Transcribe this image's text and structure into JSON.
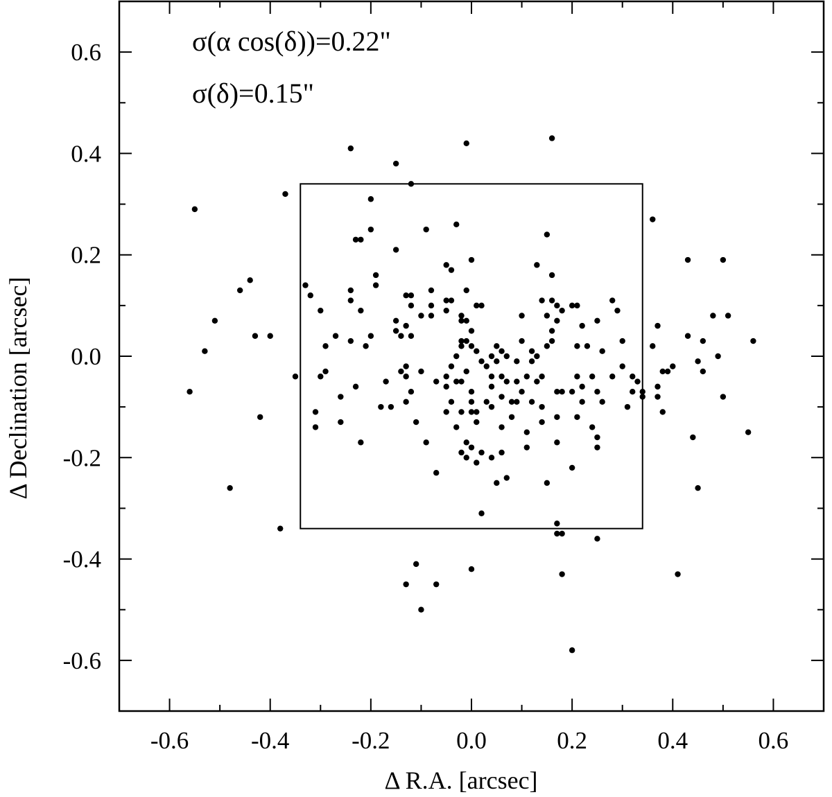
{
  "chart_data": {
    "type": "scatter",
    "xlabel": "Δ R.A. [arcsec]",
    "ylabel": "Δ Declination [arcsec]",
    "xlim": [
      -0.7,
      0.7
    ],
    "ylim": [
      -0.7,
      0.7
    ],
    "xticks": [
      "-0.6",
      "-0.4",
      "-0.2",
      "0.0",
      "0.2",
      "0.4",
      "0.6"
    ],
    "yticks": [
      "-0.6",
      "-0.4",
      "-0.2",
      "0.0",
      "0.2",
      "0.4",
      "0.6"
    ],
    "xtick_values": [
      -0.6,
      -0.4,
      -0.2,
      0.0,
      0.2,
      0.4,
      0.6
    ],
    "ytick_values": [
      -0.6,
      -0.4,
      -0.2,
      0.0,
      0.2,
      0.4,
      0.6
    ],
    "grid": false,
    "annotations": [
      "σ(α cos(δ))=0.22\"",
      "σ(δ)=0.15\""
    ],
    "box": {
      "x": [
        -0.34,
        0.34
      ],
      "y": [
        -0.34,
        0.34
      ]
    },
    "marker_color": "#000000",
    "points": [
      [
        0.16,
        0.43
      ],
      [
        -0.24,
        0.41
      ],
      [
        -0.01,
        0.42
      ],
      [
        -0.15,
        0.38
      ],
      [
        -0.12,
        0.34
      ],
      [
        -0.37,
        0.32
      ],
      [
        -0.2,
        0.31
      ],
      [
        -0.55,
        0.29
      ],
      [
        0.36,
        0.27
      ],
      [
        -0.03,
        0.26
      ],
      [
        -0.09,
        0.25
      ],
      [
        -0.2,
        0.25
      ],
      [
        0.15,
        0.24
      ],
      [
        -0.22,
        0.23
      ],
      [
        -0.23,
        0.23
      ],
      [
        -0.15,
        0.21
      ],
      [
        -0.04,
        0.17
      ],
      [
        -0.05,
        0.18
      ],
      [
        0.0,
        0.19
      ],
      [
        0.13,
        0.18
      ],
      [
        0.16,
        0.16
      ],
      [
        0.43,
        0.19
      ],
      [
        0.5,
        0.19
      ],
      [
        -0.44,
        0.15
      ],
      [
        -0.46,
        0.13
      ],
      [
        -0.33,
        0.14
      ],
      [
        -0.32,
        0.12
      ],
      [
        -0.19,
        0.16
      ],
      [
        -0.19,
        0.14
      ],
      [
        -0.24,
        0.13
      ],
      [
        -0.24,
        0.11
      ],
      [
        -0.22,
        0.09
      ],
      [
        -0.3,
        0.09
      ],
      [
        -0.13,
        0.12
      ],
      [
        -0.12,
        0.12
      ],
      [
        -0.12,
        0.1
      ],
      [
        -0.08,
        0.13
      ],
      [
        -0.08,
        0.1
      ],
      [
        -0.05,
        0.11
      ],
      [
        -0.05,
        0.09
      ],
      [
        -0.04,
        0.11
      ],
      [
        -0.02,
        0.08
      ],
      [
        -0.01,
        0.13
      ],
      [
        0.01,
        0.1
      ],
      [
        0.02,
        0.1
      ],
      [
        -0.08,
        0.08
      ],
      [
        -0.1,
        0.08
      ],
      [
        0.14,
        0.11
      ],
      [
        0.16,
        0.11
      ],
      [
        0.17,
        0.1
      ],
      [
        0.18,
        0.09
      ],
      [
        0.2,
        0.1
      ],
      [
        0.21,
        0.1
      ],
      [
        0.28,
        0.11
      ],
      [
        0.29,
        0.09
      ],
      [
        0.1,
        0.08
      ],
      [
        0.15,
        0.08
      ],
      [
        0.17,
        0.07
      ],
      [
        0.25,
        0.07
      ],
      [
        0.22,
        0.06
      ],
      [
        -0.51,
        0.07
      ],
      [
        -0.15,
        0.07
      ],
      [
        -0.15,
        0.05
      ],
      [
        -0.13,
        0.06
      ],
      [
        -0.12,
        0.04
      ],
      [
        -0.14,
        0.04
      ],
      [
        -0.2,
        0.04
      ],
      [
        -0.21,
        0.02
      ],
      [
        -0.24,
        0.03
      ],
      [
        -0.27,
        0.04
      ],
      [
        -0.29,
        0.02
      ],
      [
        -0.43,
        0.04
      ],
      [
        -0.4,
        0.04
      ],
      [
        -0.53,
        0.01
      ],
      [
        -0.01,
        0.07
      ],
      [
        -0.02,
        0.07
      ],
      [
        0.0,
        0.05
      ],
      [
        0.16,
        0.05
      ],
      [
        0.16,
        0.03
      ],
      [
        0.15,
        0.02
      ],
      [
        0.37,
        0.06
      ],
      [
        0.43,
        0.04
      ],
      [
        0.46,
        0.03
      ],
      [
        0.48,
        0.08
      ],
      [
        0.51,
        0.08
      ],
      [
        0.56,
        0.03
      ],
      [
        0.3,
        0.03
      ],
      [
        0.36,
        0.02
      ],
      [
        -0.02,
        0.03
      ],
      [
        -0.01,
        0.03
      ],
      [
        -0.02,
        0.02
      ],
      [
        0.0,
        0.02
      ],
      [
        0.01,
        0.01
      ],
      [
        -0.03,
        0.0
      ],
      [
        0.02,
        -0.01
      ],
      [
        0.04,
        0.0
      ],
      [
        0.05,
        0.02
      ],
      [
        0.06,
        0.01
      ],
      [
        0.05,
        -0.01
      ],
      [
        0.07,
        0.0
      ],
      [
        0.1,
        0.03
      ],
      [
        0.12,
        0.01
      ],
      [
        0.12,
        -0.01
      ],
      [
        0.09,
        -0.01
      ],
      [
        0.13,
        0.0
      ],
      [
        0.21,
        0.02
      ],
      [
        0.23,
        0.02
      ],
      [
        0.26,
        0.01
      ],
      [
        0.3,
        -0.02
      ],
      [
        0.28,
        -0.04
      ],
      [
        0.32,
        -0.04
      ],
      [
        0.33,
        -0.05
      ],
      [
        0.34,
        -0.07
      ],
      [
        0.32,
        -0.07
      ],
      [
        0.34,
        -0.08
      ],
      [
        0.31,
        -0.1
      ],
      [
        0.38,
        -0.03
      ],
      [
        0.39,
        -0.03
      ],
      [
        0.4,
        -0.02
      ],
      [
        0.45,
        -0.01
      ],
      [
        0.49,
        0.0
      ],
      [
        0.46,
        -0.03
      ],
      [
        0.37,
        -0.06
      ],
      [
        0.37,
        -0.08
      ],
      [
        0.38,
        -0.11
      ],
      [
        0.5,
        -0.08
      ],
      [
        0.55,
        -0.15
      ],
      [
        0.44,
        -0.16
      ],
      [
        0.45,
        -0.26
      ],
      [
        0.41,
        -0.43
      ],
      [
        -0.04,
        -0.02
      ],
      [
        -0.05,
        -0.04
      ],
      [
        -0.05,
        -0.06
      ],
      [
        -0.04,
        -0.09
      ],
      [
        -0.03,
        -0.05
      ],
      [
        -0.01,
        -0.03
      ],
      [
        -0.02,
        -0.05
      ],
      [
        0.0,
        -0.07
      ],
      [
        0.0,
        -0.09
      ],
      [
        -0.02,
        -0.11
      ],
      [
        0.0,
        -0.11
      ],
      [
        0.01,
        -0.11
      ],
      [
        0.01,
        -0.13
      ],
      [
        -0.03,
        -0.14
      ],
      [
        -0.05,
        -0.11
      ],
      [
        0.03,
        -0.02
      ],
      [
        0.04,
        -0.04
      ],
      [
        0.04,
        -0.06
      ],
      [
        0.03,
        -0.09
      ],
      [
        0.04,
        -0.1
      ],
      [
        0.06,
        -0.04
      ],
      [
        0.07,
        -0.05
      ],
      [
        0.06,
        -0.08
      ],
      [
        0.08,
        -0.09
      ],
      [
        0.09,
        -0.05
      ],
      [
        0.1,
        -0.07
      ],
      [
        0.09,
        -0.09
      ],
      [
        0.08,
        -0.12
      ],
      [
        0.06,
        -0.14
      ],
      [
        0.11,
        -0.04
      ],
      [
        0.13,
        -0.05
      ],
      [
        0.14,
        -0.04
      ],
      [
        0.12,
        -0.09
      ],
      [
        0.14,
        -0.1
      ],
      [
        0.17,
        -0.07
      ],
      [
        0.18,
        -0.07
      ],
      [
        0.17,
        -0.12
      ],
      [
        0.14,
        -0.13
      ],
      [
        0.21,
        -0.04
      ],
      [
        0.2,
        -0.07
      ],
      [
        0.22,
        -0.06
      ],
      [
        0.22,
        -0.09
      ],
      [
        0.21,
        -0.12
      ],
      [
        0.24,
        -0.04
      ],
      [
        0.25,
        -0.07
      ],
      [
        0.26,
        -0.09
      ],
      [
        0.24,
        -0.14
      ],
      [
        0.25,
        -0.16
      ],
      [
        0.25,
        -0.18
      ],
      [
        -0.07,
        -0.05
      ],
      [
        -0.1,
        -0.03
      ],
      [
        -0.12,
        -0.07
      ],
      [
        -0.13,
        -0.09
      ],
      [
        -0.13,
        -0.04
      ],
      [
        -0.13,
        -0.02
      ],
      [
        -0.17,
        -0.05
      ],
      [
        -0.18,
        -0.1
      ],
      [
        -0.16,
        -0.1
      ],
      [
        -0.11,
        -0.13
      ],
      [
        -0.14,
        -0.03
      ],
      [
        -0.23,
        -0.06
      ],
      [
        -0.26,
        -0.08
      ],
      [
        -0.26,
        -0.13
      ],
      [
        -0.29,
        -0.03
      ],
      [
        -0.31,
        -0.11
      ],
      [
        -0.31,
        -0.14
      ],
      [
        -0.35,
        -0.04
      ],
      [
        -0.3,
        -0.04
      ],
      [
        -0.22,
        -0.17
      ],
      [
        -0.09,
        -0.17
      ],
      [
        -0.02,
        -0.19
      ],
      [
        -0.01,
        -0.2
      ],
      [
        -0.01,
        -0.17
      ],
      [
        0.0,
        -0.18
      ],
      [
        0.01,
        -0.21
      ],
      [
        0.02,
        -0.19
      ],
      [
        0.04,
        -0.2
      ],
      [
        0.06,
        -0.19
      ],
      [
        0.05,
        -0.25
      ],
      [
        0.07,
        -0.24
      ],
      [
        -0.07,
        -0.23
      ],
      [
        0.02,
        -0.31
      ],
      [
        0.11,
        -0.15
      ],
      [
        0.11,
        -0.18
      ],
      [
        0.15,
        -0.25
      ],
      [
        0.17,
        -0.17
      ],
      [
        0.2,
        -0.22
      ],
      [
        0.17,
        -0.33
      ],
      [
        0.17,
        -0.35
      ],
      [
        0.18,
        -0.35
      ],
      [
        0.25,
        -0.36
      ],
      [
        0.18,
        -0.43
      ],
      [
        0.2,
        -0.58
      ],
      [
        -0.56,
        -0.07
      ],
      [
        -0.42,
        -0.12
      ],
      [
        -0.48,
        -0.26
      ],
      [
        -0.38,
        -0.34
      ],
      [
        -0.13,
        -0.45
      ],
      [
        -0.11,
        -0.41
      ],
      [
        -0.07,
        -0.45
      ],
      [
        -0.1,
        -0.5
      ],
      [
        0.0,
        -0.42
      ]
    ]
  }
}
